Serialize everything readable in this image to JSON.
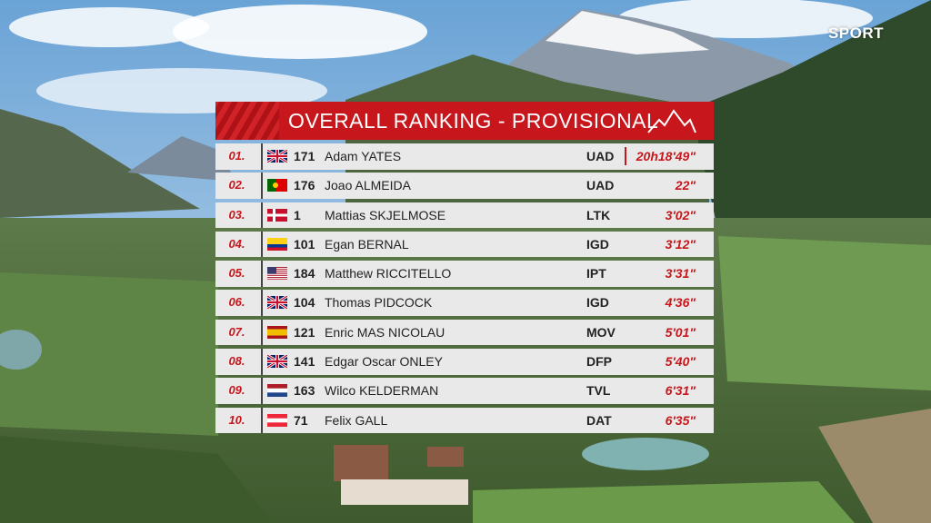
{
  "broadcast": {
    "logo_text": "SPORT"
  },
  "board": {
    "title": "OVERALL RANKING - PROVISIONAL",
    "accent_color": "#c8171c",
    "rows": [
      {
        "pos": "01.",
        "flag": "gb",
        "bib": "171",
        "name": "Adam YATES",
        "team": "UAD",
        "time": "20h18'49\""
      },
      {
        "pos": "02.",
        "flag": "pt",
        "bib": "176",
        "name": "Joao ALMEIDA",
        "team": "UAD",
        "time": "22\""
      },
      {
        "pos": "03.",
        "flag": "dk",
        "bib": "1",
        "name": "Mattias SKJELMOSE",
        "team": "LTK",
        "time": "3'02\""
      },
      {
        "pos": "04.",
        "flag": "co",
        "bib": "101",
        "name": "Egan BERNAL",
        "team": "IGD",
        "time": "3'12\""
      },
      {
        "pos": "05.",
        "flag": "us",
        "bib": "184",
        "name": "Matthew RICCITELLO",
        "team": "IPT",
        "time": "3'31\""
      },
      {
        "pos": "06.",
        "flag": "gb",
        "bib": "104",
        "name": "Thomas PIDCOCK",
        "team": "IGD",
        "time": "4'36\""
      },
      {
        "pos": "07.",
        "flag": "es",
        "bib": "121",
        "name": "Enric MAS NICOLAU",
        "team": "MOV",
        "time": "5'01\""
      },
      {
        "pos": "08.",
        "flag": "gb",
        "bib": "141",
        "name": "Edgar Oscar ONLEY",
        "team": "DFP",
        "time": "5'40\""
      },
      {
        "pos": "09.",
        "flag": "nl",
        "bib": "163",
        "name": "Wilco KELDERMAN",
        "team": "TVL",
        "time": "6'31\""
      },
      {
        "pos": "10.",
        "flag": "at",
        "bib": "71",
        "name": "Felix GALL",
        "team": "DAT",
        "time": "6'35\""
      }
    ]
  }
}
